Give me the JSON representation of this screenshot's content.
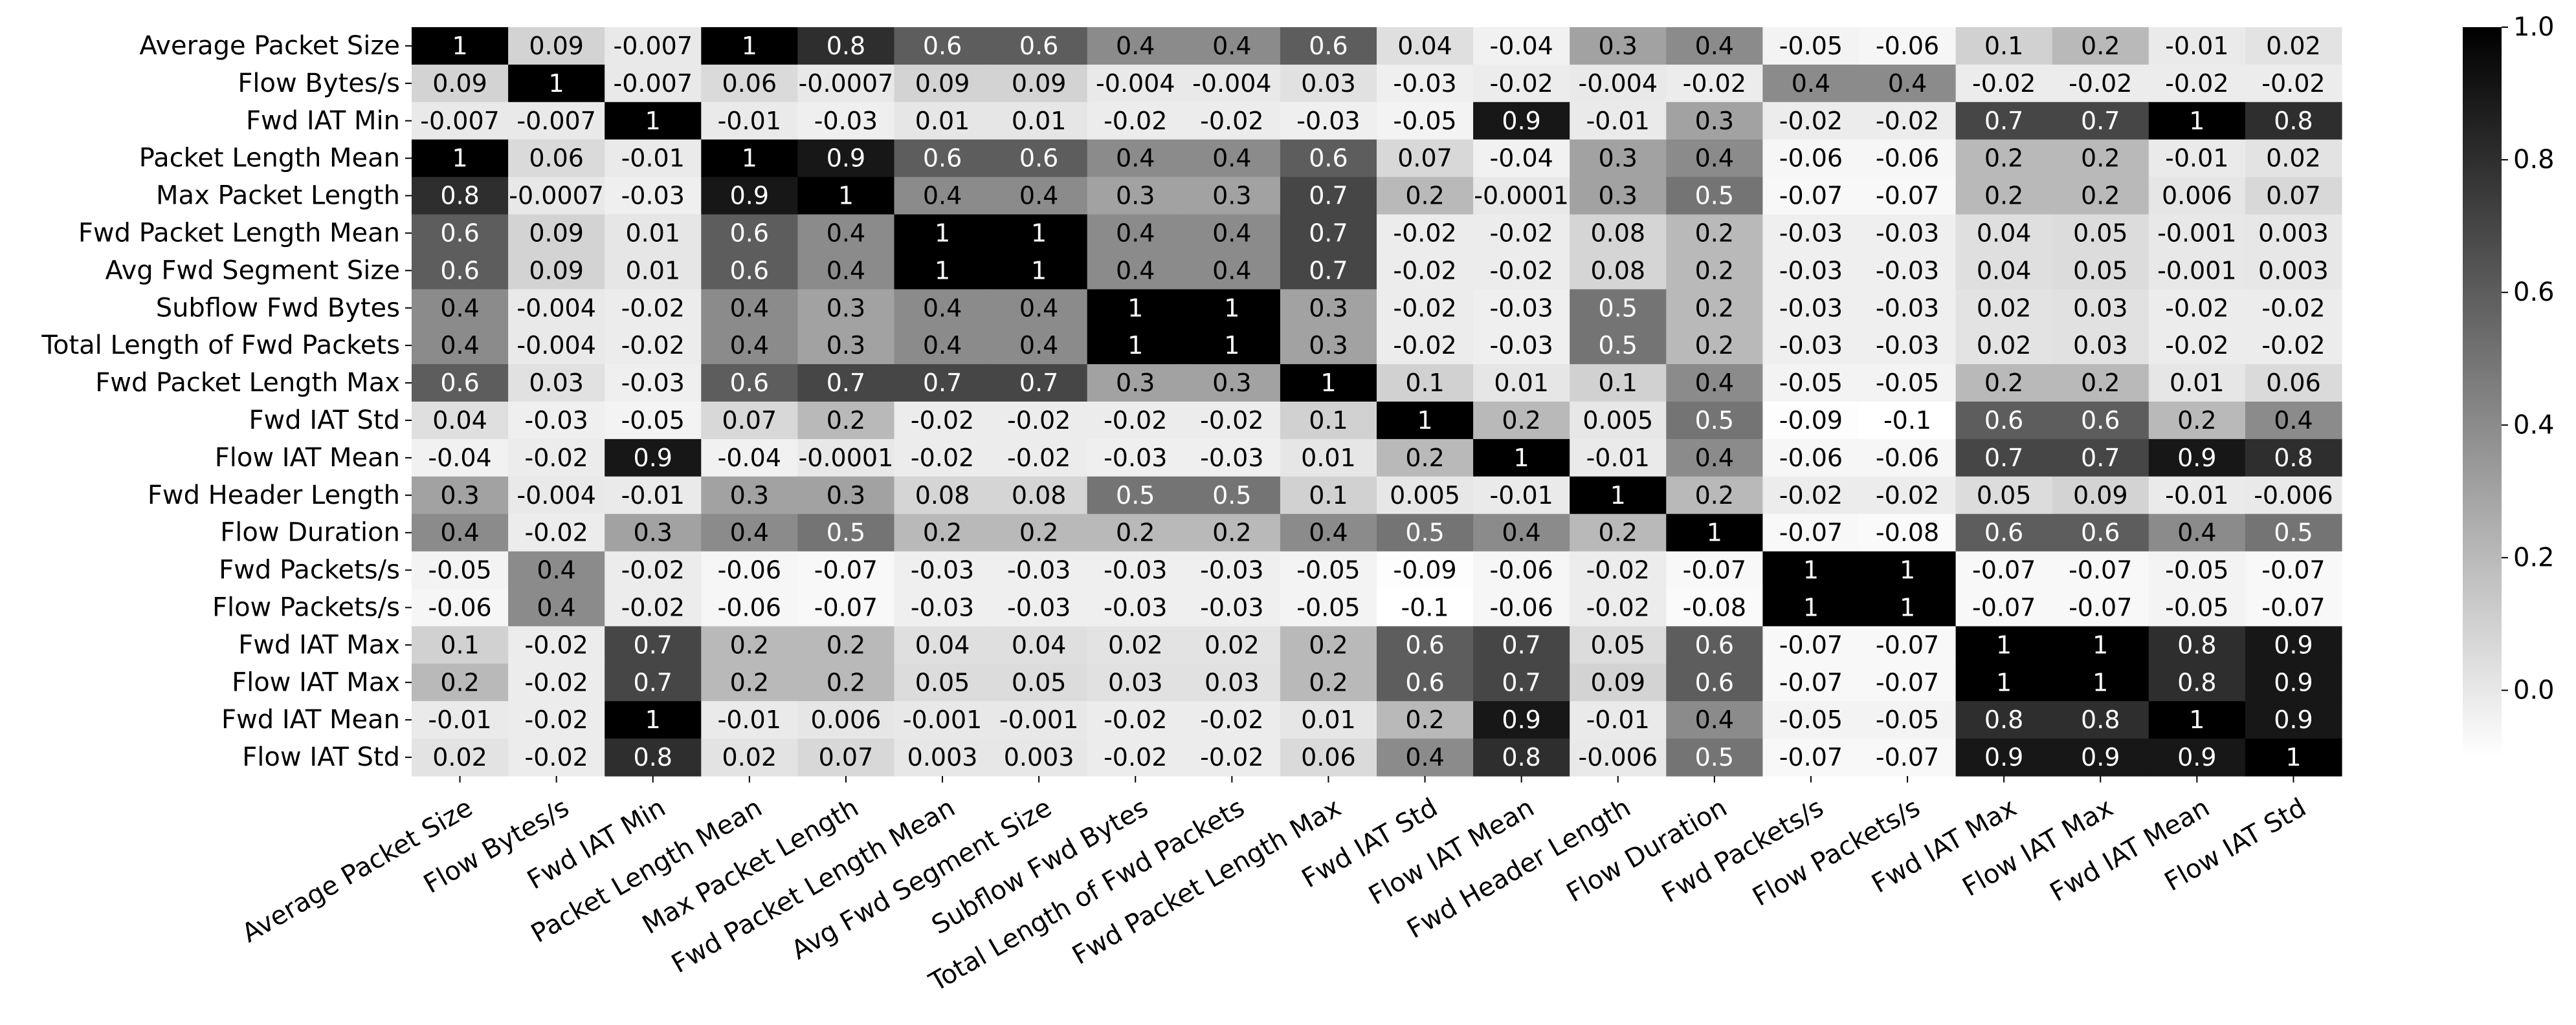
{
  "chart_data": {
    "type": "heatmap",
    "title": "",
    "xlabel": "",
    "ylabel": "",
    "labels": [
      "Average Packet Size",
      "Flow Bytes/s",
      "Fwd IAT Min",
      "Packet Length Mean",
      "Max Packet Length",
      "Fwd Packet Length Mean",
      "Avg Fwd Segment Size",
      "Subflow Fwd Bytes",
      "Total Length of Fwd Packets",
      "Fwd Packet Length Max",
      "Fwd IAT Std",
      "Flow IAT Mean",
      "Fwd Header Length",
      "Flow Duration",
      "Fwd Packets/s",
      "Flow Packets/s",
      "Fwd IAT Max",
      "Flow IAT Max",
      "Fwd IAT Mean",
      "Flow IAT Std"
    ],
    "matrix": [
      [
        "1",
        "0.09",
        "-0.007",
        "1",
        "0.8",
        "0.6",
        "0.6",
        "0.4",
        "0.4",
        "0.6",
        "0.04",
        "-0.04",
        "0.3",
        "0.4",
        "-0.05",
        "-0.06",
        "0.1",
        "0.2",
        "-0.01",
        "0.02"
      ],
      [
        "0.09",
        "1",
        "-0.007",
        "0.06",
        "-0.0007",
        "0.09",
        "0.09",
        "-0.004",
        "-0.004",
        "0.03",
        "-0.03",
        "-0.02",
        "-0.004",
        "-0.02",
        "0.4",
        "0.4",
        "-0.02",
        "-0.02",
        "-0.02",
        "-0.02"
      ],
      [
        "-0.007",
        "-0.007",
        "1",
        "-0.01",
        "-0.03",
        "0.01",
        "0.01",
        "-0.02",
        "-0.02",
        "-0.03",
        "-0.05",
        "0.9",
        "-0.01",
        "0.3",
        "-0.02",
        "-0.02",
        "0.7",
        "0.7",
        "1",
        "0.8"
      ],
      [
        "1",
        "0.06",
        "-0.01",
        "1",
        "0.9",
        "0.6",
        "0.6",
        "0.4",
        "0.4",
        "0.6",
        "0.07",
        "-0.04",
        "0.3",
        "0.4",
        "-0.06",
        "-0.06",
        "0.2",
        "0.2",
        "-0.01",
        "0.02"
      ],
      [
        "0.8",
        "-0.0007",
        "-0.03",
        "0.9",
        "1",
        "0.4",
        "0.4",
        "0.3",
        "0.3",
        "0.7",
        "0.2",
        "-0.0001",
        "0.3",
        "0.5",
        "-0.07",
        "-0.07",
        "0.2",
        "0.2",
        "0.006",
        "0.07"
      ],
      [
        "0.6",
        "0.09",
        "0.01",
        "0.6",
        "0.4",
        "1",
        "1",
        "0.4",
        "0.4",
        "0.7",
        "-0.02",
        "-0.02",
        "0.08",
        "0.2",
        "-0.03",
        "-0.03",
        "0.04",
        "0.05",
        "-0.001",
        "0.003"
      ],
      [
        "0.6",
        "0.09",
        "0.01",
        "0.6",
        "0.4",
        "1",
        "1",
        "0.4",
        "0.4",
        "0.7",
        "-0.02",
        "-0.02",
        "0.08",
        "0.2",
        "-0.03",
        "-0.03",
        "0.04",
        "0.05",
        "-0.001",
        "0.003"
      ],
      [
        "0.4",
        "-0.004",
        "-0.02",
        "0.4",
        "0.3",
        "0.4",
        "0.4",
        "1",
        "1",
        "0.3",
        "-0.02",
        "-0.03",
        "0.5",
        "0.2",
        "-0.03",
        "-0.03",
        "0.02",
        "0.03",
        "-0.02",
        "-0.02"
      ],
      [
        "0.4",
        "-0.004",
        "-0.02",
        "0.4",
        "0.3",
        "0.4",
        "0.4",
        "1",
        "1",
        "0.3",
        "-0.02",
        "-0.03",
        "0.5",
        "0.2",
        "-0.03",
        "-0.03",
        "0.02",
        "0.03",
        "-0.02",
        "-0.02"
      ],
      [
        "0.6",
        "0.03",
        "-0.03",
        "0.6",
        "0.7",
        "0.7",
        "0.7",
        "0.3",
        "0.3",
        "1",
        "0.1",
        "0.01",
        "0.1",
        "0.4",
        "-0.05",
        "-0.05",
        "0.2",
        "0.2",
        "0.01",
        "0.06"
      ],
      [
        "0.04",
        "-0.03",
        "-0.05",
        "0.07",
        "0.2",
        "-0.02",
        "-0.02",
        "-0.02",
        "-0.02",
        "0.1",
        "1",
        "0.2",
        "0.005",
        "0.5",
        "-0.09",
        "-0.1",
        "0.6",
        "0.6",
        "0.2",
        "0.4"
      ],
      [
        "-0.04",
        "-0.02",
        "0.9",
        "-0.04",
        "-0.0001",
        "-0.02",
        "-0.02",
        "-0.03",
        "-0.03",
        "0.01",
        "0.2",
        "1",
        "-0.01",
        "0.4",
        "-0.06",
        "-0.06",
        "0.7",
        "0.7",
        "0.9",
        "0.8"
      ],
      [
        "0.3",
        "-0.004",
        "-0.01",
        "0.3",
        "0.3",
        "0.08",
        "0.08",
        "0.5",
        "0.5",
        "0.1",
        "0.005",
        "-0.01",
        "1",
        "0.2",
        "-0.02",
        "-0.02",
        "0.05",
        "0.09",
        "-0.01",
        "-0.006"
      ],
      [
        "0.4",
        "-0.02",
        "0.3",
        "0.4",
        "0.5",
        "0.2",
        "0.2",
        "0.2",
        "0.2",
        "0.4",
        "0.5",
        "0.4",
        "0.2",
        "1",
        "-0.07",
        "-0.08",
        "0.6",
        "0.6",
        "0.4",
        "0.5"
      ],
      [
        "-0.05",
        "0.4",
        "-0.02",
        "-0.06",
        "-0.07",
        "-0.03",
        "-0.03",
        "-0.03",
        "-0.03",
        "-0.05",
        "-0.09",
        "-0.06",
        "-0.02",
        "-0.07",
        "1",
        "1",
        "-0.07",
        "-0.07",
        "-0.05",
        "-0.07"
      ],
      [
        "-0.06",
        "0.4",
        "-0.02",
        "-0.06",
        "-0.07",
        "-0.03",
        "-0.03",
        "-0.03",
        "-0.03",
        "-0.05",
        "-0.1",
        "-0.06",
        "-0.02",
        "-0.08",
        "1",
        "1",
        "-0.07",
        "-0.07",
        "-0.05",
        "-0.07"
      ],
      [
        "0.1",
        "-0.02",
        "0.7",
        "0.2",
        "0.2",
        "0.04",
        "0.04",
        "0.02",
        "0.02",
        "0.2",
        "0.6",
        "0.7",
        "0.05",
        "0.6",
        "-0.07",
        "-0.07",
        "1",
        "1",
        "0.8",
        "0.9"
      ],
      [
        "0.2",
        "-0.02",
        "0.7",
        "0.2",
        "0.2",
        "0.05",
        "0.05",
        "0.03",
        "0.03",
        "0.2",
        "0.6",
        "0.7",
        "0.09",
        "0.6",
        "-0.07",
        "-0.07",
        "1",
        "1",
        "0.8",
        "0.9"
      ],
      [
        "-0.01",
        "-0.02",
        "1",
        "-0.01",
        "0.006",
        "-0.001",
        "-0.001",
        "-0.02",
        "-0.02",
        "0.01",
        "0.2",
        "0.9",
        "-0.01",
        "0.4",
        "-0.05",
        "-0.05",
        "0.8",
        "0.8",
        "1",
        "0.9"
      ],
      [
        "0.02",
        "-0.02",
        "0.8",
        "0.02",
        "0.07",
        "0.003",
        "0.003",
        "-0.02",
        "-0.02",
        "0.06",
        "0.4",
        "0.8",
        "-0.006",
        "0.5",
        "-0.07",
        "-0.07",
        "0.9",
        "0.9",
        "0.9",
        "1"
      ]
    ],
    "colormap": "white-to-black",
    "vmin": -0.1,
    "vmax": 1.0,
    "colorbar": {
      "ticks": [
        "0.0",
        "0.2",
        "0.4",
        "0.6",
        "0.8",
        "1.0"
      ]
    },
    "grid": false,
    "legend": "colorbar-right"
  }
}
